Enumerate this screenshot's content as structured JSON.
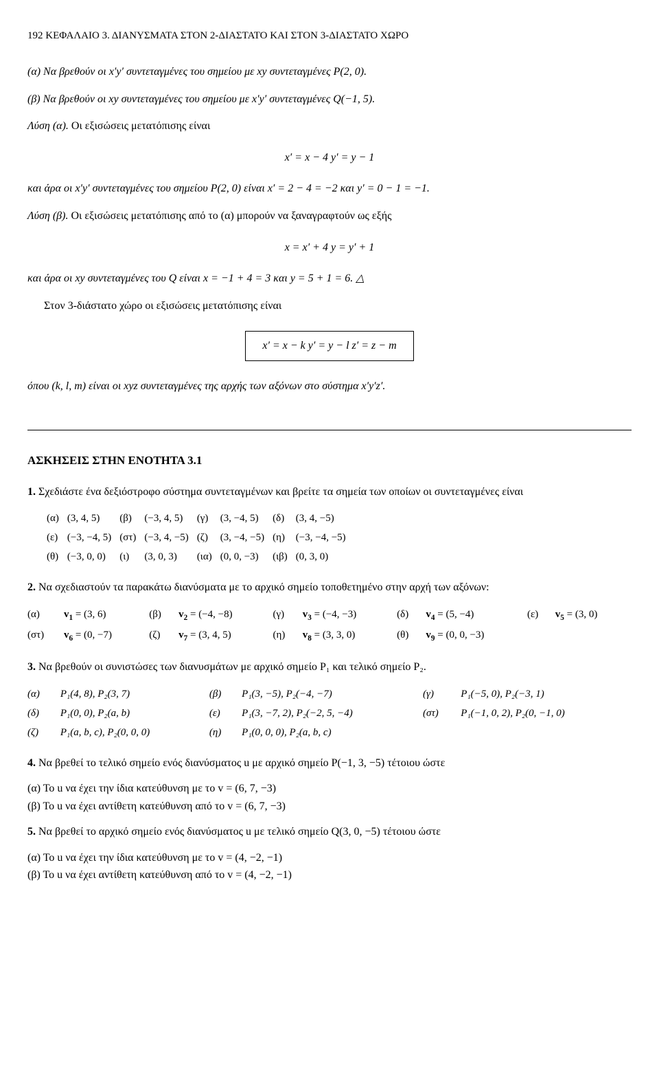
{
  "header": "192 ΚΕΦΑΛΑΙΟ 3. ΔΙΑΝΥΣΜΑΤΑ ΣΤΟΝ 2-ΔΙΑΣΤΑΤΟ ΚΑΙ ΣΤΟΝ 3-ΔΙΑΣΤΑΤΟ ΧΩΡΟ",
  "p_a": "(α) Να βρεθούν οι x′y′ συντεταγμένες του σημείου με xy συντεταγμένες P(2, 0).",
  "p_b": "(β) Να βρεθούν οι xy συντεταγμένες του σημείου με x′y′ συντεταγμένες Q(−1, 5).",
  "lysi_a_label": "Λύση (α).",
  "lysi_a_text": " Οι εξισώσεις μετατόπισης είναι",
  "eq1": "x′ = x − 4    y′ = y − 1",
  "lysi_a_after": "και άρα οι x′y′ συντεταγμένες του σημείου P(2, 0) είναι x′ = 2 − 4 = −2 και y′ = 0 − 1 = −1.",
  "lysi_b_label": "Λύση (β).",
  "lysi_b_text": " Οι εξισώσεις μετατόπισης από το (α) μπορούν να ξαναγραφτούν ως εξής",
  "eq2": "x = x′ + 4    y = y′ + 1",
  "lysi_b_after": "και άρα οι xy συντεταγμένες του Q είναι x = −1 + 4 = 3 και y = 5 + 1 = 6.  △",
  "p3d": "Στον 3-διάστατο χώρο οι εξισώσεις μετατόπισης είναι",
  "eq_box": "x′ = x − k    y′ = y − l    z′ = z − m",
  "p_opoy": "όπου (k, l, m) είναι οι xyz συντεταγμένες της αρχής των αξόνων στο σύστημα x′y′z′.",
  "section_title": "ΑΣΚΗΣΕΙΣ ΣΤΗΝ ΕΝΟΤΗΤΑ 3.1",
  "ex1": {
    "num": "1.",
    "intro": " Σχεδιάστε ένα δεξιόστροφο σύστημα συντεταγμένων και βρείτε τα σημεία των οποίων οι συντεταγμένες είναι",
    "rows": [
      [
        "(α)",
        "(3, 4, 5)",
        "(β)",
        "(−3, 4, 5)",
        "(γ)",
        "(3, −4, 5)",
        "(δ)",
        "(3, 4, −5)"
      ],
      [
        "(ε)",
        "(−3, −4, 5)",
        "(στ)",
        "(−3, 4, −5)",
        "(ζ)",
        "(3, −4, −5)",
        "(η)",
        "(−3, −4, −5)"
      ],
      [
        "(θ)",
        "(−3, 0, 0)",
        "(ι)",
        "(3, 0, 3)",
        "(ια)",
        "(0, 0, −3)",
        "(ιβ)",
        "(0, 3, 0)"
      ]
    ]
  },
  "ex2": {
    "num": "2.",
    "intro": " Να σχεδιαστούν τα παρακάτω διανύσματα με το αρχικό σημείο τοποθετημένο στην αρχή των αξόνων:",
    "rows": [
      [
        {
          "lbl": "(α)",
          "v": "v",
          "sub": "1",
          "eq": " = (3, 6)"
        },
        {
          "lbl": "(β)",
          "v": "v",
          "sub": "2",
          "eq": " = (−4, −8)"
        },
        {
          "lbl": "(γ)",
          "v": "v",
          "sub": "3",
          "eq": " = (−4, −3)"
        },
        {
          "lbl": "(δ)",
          "v": "v",
          "sub": "4",
          "eq": " = (5, −4)"
        },
        {
          "lbl": "(ε)",
          "v": "v",
          "sub": "5",
          "eq": " = (3, 0)"
        }
      ],
      [
        {
          "lbl": "(στ)",
          "v": "v",
          "sub": "6",
          "eq": " = (0, −7)"
        },
        {
          "lbl": "(ζ)",
          "v": "v",
          "sub": "7",
          "eq": " = (3, 4, 5)"
        },
        {
          "lbl": "(η)",
          "v": "v",
          "sub": "8",
          "eq": " = (3, 3, 0)"
        },
        {
          "lbl": "(θ)",
          "v": "v",
          "sub": "9",
          "eq": " = (0, 0, −3)"
        }
      ]
    ]
  },
  "ex3": {
    "num": "3.",
    "intro": " Να βρεθούν οι συνιστώσες των διανυσμάτων με αρχικό σημείο P₁ και τελικό σημείο P₂.",
    "rows": [
      [
        "(α)",
        "P₁(4, 8), P₂(3, 7)",
        "(β)",
        "P₁(3, −5), P₂(−4, −7)",
        "(γ)",
        "P₁(−5, 0), P₂(−3, 1)"
      ],
      [
        "(δ)",
        "P₁(0, 0), P₂(a, b)",
        "(ε)",
        "P₁(3, −7, 2), P₂(−2, 5, −4)",
        "(στ)",
        "P₁(−1, 0, 2), P₂(0, −1, 0)"
      ],
      [
        "(ζ)",
        "P₁(a, b, c), P₂(0, 0, 0)",
        "(η)",
        "P₁(0, 0, 0), P₂(a, b, c)",
        "",
        ""
      ]
    ]
  },
  "ex4": {
    "num": "4.",
    "intro": " Να βρεθεί το τελικό σημείο ενός διανύσματος u με αρχικό σημείο P(−1, 3, −5) τέτοιου ώστε",
    "a": "(α)  Το u να έχει την ίδια κατεύθυνση με το v = (6, 7, −3)",
    "b": "(β)  Το u να έχει αντίθετη κατεύθυνση από το v = (6, 7, −3)"
  },
  "ex5": {
    "num": "5.",
    "intro": " Να βρεθεί το αρχικό σημείο ενός διανύσματος u με τελικό σημείο Q(3, 0, −5) τέτοιου ώστε",
    "a": "(α)  Το u να έχει την ίδια κατεύθυνση με το v = (4, −2, −1)",
    "b": "(β)  Το u να έχει αντίθετη κατεύθυνση από το v = (4, −2, −1)"
  }
}
